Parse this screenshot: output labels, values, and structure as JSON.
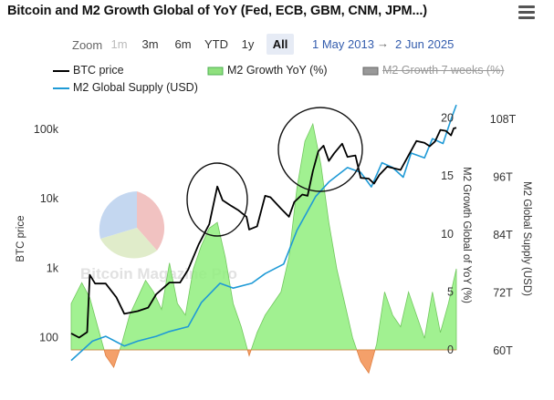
{
  "title": "Bitcoin and M2 Growth Global of YoY (Fed, ECB, GBM, CNM, JPM...)",
  "menu_icon": "hamburger-menu-icon",
  "range_selector": {
    "zoom_label": "Zoom",
    "buttons": [
      {
        "label": "1m",
        "state": "disabled"
      },
      {
        "label": "3m",
        "state": "normal"
      },
      {
        "label": "6m",
        "state": "normal"
      },
      {
        "label": "YTD",
        "state": "normal"
      },
      {
        "label": "1y",
        "state": "normal"
      },
      {
        "label": "All",
        "state": "selected"
      }
    ],
    "from_date": "1 May 2013",
    "arrow": "→",
    "to_date": "2 Jun 2025"
  },
  "legend": [
    {
      "name": "BTC price",
      "color": "#000000",
      "type": "line",
      "visible": true
    },
    {
      "name": "M2 Growth YoY (%)",
      "color": "#4caf50",
      "type": "area",
      "visible": true
    },
    {
      "name": "M2 Growth 7 weeks (%)",
      "color": "#666666",
      "type": "area",
      "visible": false
    },
    {
      "name": "M2 Global Supply (USD)",
      "color": "#1f9ad6",
      "type": "line",
      "visible": true
    }
  ],
  "watermark": "Bitcoin Magazine Pro",
  "chart_data": {
    "type": "line",
    "x_range": [
      "2013-05",
      "2025-06"
    ],
    "grid": false,
    "legend_position": "top",
    "axes": {
      "btc": {
        "title": "BTC price",
        "scale": "log",
        "range": [
          50,
          200000
        ],
        "ticks": [
          "100",
          "1k",
          "10k",
          "100k"
        ]
      },
      "m2_growth": {
        "title": "M2 Growth Global of YoY (%)",
        "range": [
          0,
          21
        ],
        "ticks": [
          "0",
          "5",
          "10",
          "15",
          "20"
        ]
      },
      "m2_supply": {
        "title": "M2 Global Supply (USD)",
        "unit": "T",
        "range": [
          58,
          112
        ],
        "ticks": [
          "60T",
          "72T",
          "84T",
          "96T",
          "108T"
        ]
      }
    },
    "series": [
      {
        "name": "BTC price",
        "axis": "btc",
        "color": "#000000",
        "points": [
          [
            "2013-05",
            115
          ],
          [
            "2013-08",
            100
          ],
          [
            "2013-11",
            120
          ],
          [
            "2013-12",
            800
          ],
          [
            "2014-02",
            600
          ],
          [
            "2014-06",
            600
          ],
          [
            "2014-10",
            380
          ],
          [
            "2015-01",
            220
          ],
          [
            "2015-06",
            240
          ],
          [
            "2015-10",
            270
          ],
          [
            "2016-01",
            420
          ],
          [
            "2016-06",
            620
          ],
          [
            "2016-10",
            620
          ],
          [
            "2017-01",
            950
          ],
          [
            "2017-05",
            2200
          ],
          [
            "2017-09",
            4300
          ],
          [
            "2017-12",
            15000
          ],
          [
            "2018-02",
            9500
          ],
          [
            "2018-05",
            8000
          ],
          [
            "2018-08",
            6800
          ],
          [
            "2018-11",
            5500
          ],
          [
            "2018-12",
            3600
          ],
          [
            "2019-03",
            4000
          ],
          [
            "2019-06",
            11000
          ],
          [
            "2019-08",
            10500
          ],
          [
            "2019-12",
            7200
          ],
          [
            "2020-03",
            5500
          ],
          [
            "2020-05",
            9000
          ],
          [
            "2020-08",
            11500
          ],
          [
            "2020-10",
            11000
          ],
          [
            "2020-12",
            25000
          ],
          [
            "2021-02",
            48000
          ],
          [
            "2021-04",
            58000
          ],
          [
            "2021-06",
            35000
          ],
          [
            "2021-08",
            45000
          ],
          [
            "2021-11",
            62000
          ],
          [
            "2022-01",
            40000
          ],
          [
            "2022-04",
            42000
          ],
          [
            "2022-06",
            20000
          ],
          [
            "2022-09",
            19500
          ],
          [
            "2022-11",
            16500
          ],
          [
            "2023-01",
            22000
          ],
          [
            "2023-04",
            29000
          ],
          [
            "2023-09",
            26000
          ],
          [
            "2023-12",
            42000
          ],
          [
            "2024-03",
            68000
          ],
          [
            "2024-06",
            64000
          ],
          [
            "2024-08",
            57000
          ],
          [
            "2024-10",
            67000
          ],
          [
            "2024-12",
            98000
          ],
          [
            "2025-02",
            95000
          ],
          [
            "2025-04",
            82000
          ],
          [
            "2025-05",
            103000
          ],
          [
            "2025-06",
            105000
          ]
        ]
      },
      {
        "name": "M2 Growth YoY (%)",
        "axis": "m2_growth",
        "color": "#90ee7e",
        "points": [
          [
            "2013-05",
            4
          ],
          [
            "2013-09",
            5.8
          ],
          [
            "2013-12",
            4.5
          ],
          [
            "2014-03",
            2
          ],
          [
            "2014-06",
            -0.5
          ],
          [
            "2014-09",
            -1.5
          ],
          [
            "2014-12",
            0.5
          ],
          [
            "2015-03",
            3
          ],
          [
            "2015-06",
            4.5
          ],
          [
            "2015-09",
            6
          ],
          [
            "2015-12",
            5
          ],
          [
            "2016-03",
            3.5
          ],
          [
            "2016-06",
            7.5
          ],
          [
            "2016-09",
            4
          ],
          [
            "2016-12",
            3
          ],
          [
            "2017-03",
            7
          ],
          [
            "2017-06",
            9
          ],
          [
            "2017-09",
            10.5
          ],
          [
            "2017-12",
            11
          ],
          [
            "2018-03",
            8
          ],
          [
            "2018-06",
            4
          ],
          [
            "2018-09",
            2
          ],
          [
            "2018-12",
            -0.5
          ],
          [
            "2019-03",
            1.5
          ],
          [
            "2019-06",
            3
          ],
          [
            "2019-09",
            4
          ],
          [
            "2019-12",
            5
          ],
          [
            "2020-03",
            8
          ],
          [
            "2020-06",
            14
          ],
          [
            "2020-09",
            18
          ],
          [
            "2020-12",
            19.5
          ],
          [
            "2021-03",
            16
          ],
          [
            "2021-06",
            11
          ],
          [
            "2021-09",
            7
          ],
          [
            "2021-12",
            4
          ],
          [
            "2022-03",
            1
          ],
          [
            "2022-06",
            -1
          ],
          [
            "2022-09",
            -2
          ],
          [
            "2022-12",
            0.5
          ],
          [
            "2023-03",
            5
          ],
          [
            "2023-06",
            3
          ],
          [
            "2023-09",
            2
          ],
          [
            "2023-12",
            5
          ],
          [
            "2024-03",
            3
          ],
          [
            "2024-06",
            1
          ],
          [
            "2024-09",
            5
          ],
          [
            "2024-12",
            1.5
          ],
          [
            "2025-03",
            4
          ],
          [
            "2025-06",
            7
          ]
        ]
      },
      {
        "name": "M2 Global Supply (USD)",
        "axis": "m2_supply",
        "color": "#1f9ad6",
        "points": [
          [
            "2013-05",
            58
          ],
          [
            "2014-01",
            62
          ],
          [
            "2014-06",
            63
          ],
          [
            "2015-01",
            61
          ],
          [
            "2015-06",
            62
          ],
          [
            "2016-01",
            63
          ],
          [
            "2016-06",
            64
          ],
          [
            "2017-01",
            65
          ],
          [
            "2017-06",
            70
          ],
          [
            "2018-01",
            74
          ],
          [
            "2018-06",
            73
          ],
          [
            "2019-01",
            74
          ],
          [
            "2019-06",
            76
          ],
          [
            "2020-01",
            78
          ],
          [
            "2020-06",
            85
          ],
          [
            "2021-01",
            92
          ],
          [
            "2021-06",
            95
          ],
          [
            "2022-01",
            98
          ],
          [
            "2022-06",
            97
          ],
          [
            "2022-10",
            94
          ],
          [
            "2023-02",
            99
          ],
          [
            "2023-06",
            98
          ],
          [
            "2023-10",
            96
          ],
          [
            "2024-01",
            101
          ],
          [
            "2024-06",
            100
          ],
          [
            "2024-09",
            104
          ],
          [
            "2025-01",
            103
          ],
          [
            "2025-04",
            108
          ],
          [
            "2025-06",
            111
          ]
        ]
      }
    ],
    "annotations": [
      {
        "type": "circle",
        "label": "",
        "near": "2017-12"
      },
      {
        "type": "circle",
        "label": "",
        "near": "2021-04"
      }
    ]
  }
}
